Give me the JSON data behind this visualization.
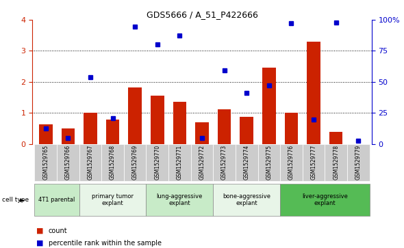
{
  "title": "GDS5666 / A_51_P422666",
  "samples": [
    "GSM1529765",
    "GSM1529766",
    "GSM1529767",
    "GSM1529768",
    "GSM1529769",
    "GSM1529770",
    "GSM1529771",
    "GSM1529772",
    "GSM1529773",
    "GSM1529774",
    "GSM1529775",
    "GSM1529776",
    "GSM1529777",
    "GSM1529778",
    "GSM1529779"
  ],
  "bar_heights": [
    0.62,
    0.5,
    1.0,
    0.78,
    1.82,
    1.55,
    1.35,
    0.7,
    1.12,
    0.88,
    2.45,
    1.0,
    3.3,
    0.38,
    0.0
  ],
  "dot_y_left_axis": [
    0.5,
    0.18,
    2.15,
    0.82,
    3.78,
    3.2,
    3.5,
    0.18,
    2.38,
    1.65,
    1.88,
    3.88,
    0.78,
    3.92,
    0.1
  ],
  "bar_color": "#cc2200",
  "dot_color": "#0000cc",
  "cell_groups": [
    {
      "label": "4T1 parental",
      "start": 0,
      "end": 1,
      "color": "#c8ebc8"
    },
    {
      "label": "primary tumor\nexplant",
      "start": 2,
      "end": 4,
      "color": "#e8f5e8"
    },
    {
      "label": "lung-aggressive\nexplant",
      "start": 5,
      "end": 7,
      "color": "#c8ebc8"
    },
    {
      "label": "bone-aggressive\nexplant",
      "start": 8,
      "end": 10,
      "color": "#e8f5e8"
    },
    {
      "label": "liver-aggressive\nexplant",
      "start": 11,
      "end": 14,
      "color": "#55bb55"
    }
  ],
  "legend_count_label": "count",
  "legend_pct_label": "percentile rank within the sample"
}
